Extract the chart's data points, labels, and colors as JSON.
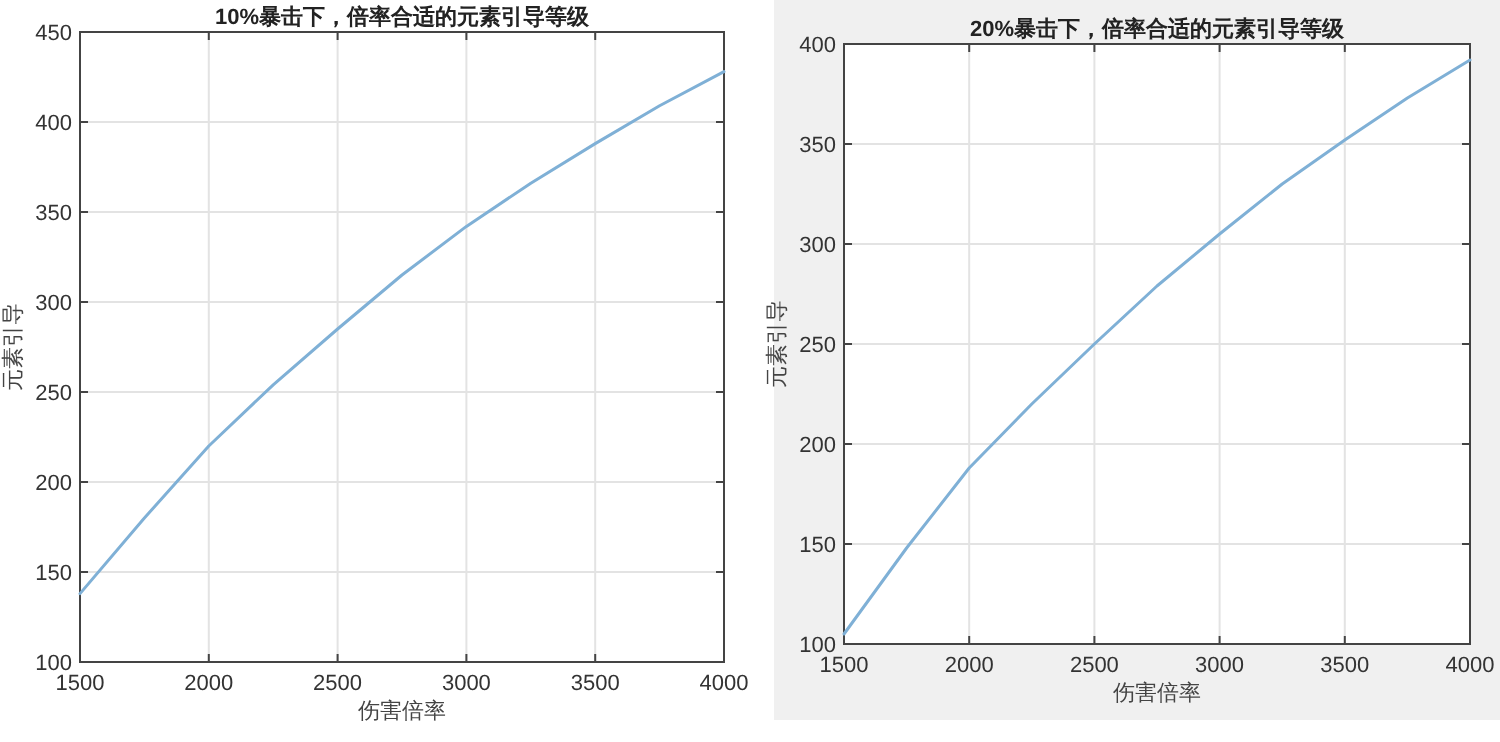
{
  "chart_data": [
    {
      "type": "line",
      "title": "10%暴击下，倍率合适的元素引导等级",
      "xlabel": "伤害倍率",
      "ylabel": "元素引导",
      "x": [
        1500,
        1750,
        2000,
        2250,
        2500,
        2750,
        3000,
        3250,
        3500,
        3750,
        4000
      ],
      "series": [
        {
          "color": "#7fb0d6",
          "values": [
            138,
            180,
            220,
            254,
            285,
            315,
            342,
            366,
            388,
            409,
            428
          ]
        }
      ],
      "xlim": [
        1500,
        4000
      ],
      "xticks": [
        1500,
        2000,
        2500,
        3000,
        3500,
        4000
      ],
      "ylim": [
        100,
        450
      ],
      "yticks": [
        100,
        150,
        200,
        250,
        300,
        350,
        400,
        450
      ],
      "grid": true
    },
    {
      "type": "line",
      "title": "20%暴击下，倍率合适的元素引导等级",
      "xlabel": "伤害倍率",
      "ylabel": "元素引导",
      "x": [
        1500,
        1750,
        2000,
        2250,
        2500,
        2750,
        3000,
        3250,
        3500,
        3750,
        4000
      ],
      "series": [
        {
          "color": "#7fb0d6",
          "values": [
            105,
            148,
            188,
            220,
            250,
            279,
            305,
            330,
            352,
            373,
            392
          ]
        }
      ],
      "xlim": [
        1500,
        4000
      ],
      "xticks": [
        1500,
        2000,
        2500,
        3000,
        3500,
        4000
      ],
      "ylim": [
        100,
        400
      ],
      "yticks": [
        100,
        150,
        200,
        250,
        300,
        350,
        400
      ],
      "grid": true
    }
  ]
}
